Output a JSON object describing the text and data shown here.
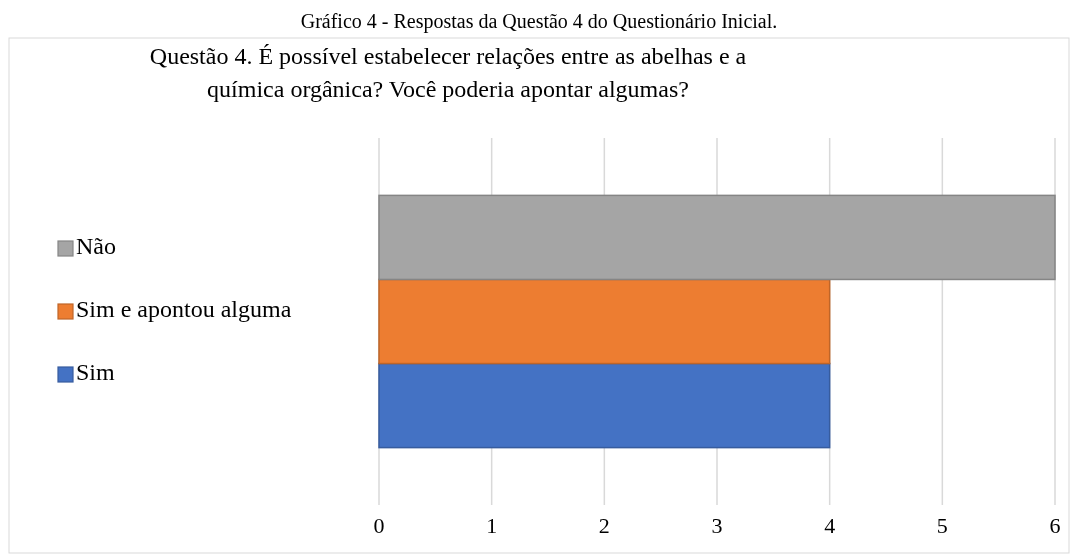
{
  "chart_data": {
    "type": "bar",
    "orientation": "horizontal",
    "title": "Gráfico 4 - Respostas da Questão 4 do Questionário Inicial.",
    "subtitle": "Questão 4. É possível estabelecer relações entre as abelhas e a\nquímica orgânica? Você poderia apontar algumas?",
    "categories": [
      null
    ],
    "series": [
      {
        "name": "Sim",
        "color": "#4472c4",
        "values": [
          4
        ]
      },
      {
        "name": "Sim e apontou alguma",
        "color": "#ed7d31",
        "values": [
          4
        ]
      },
      {
        "name": "Não",
        "color": "#a5a5a5",
        "values": [
          6
        ]
      }
    ],
    "xlim": [
      0,
      6
    ],
    "xticks": [
      0,
      1,
      2,
      3,
      4,
      5,
      6
    ],
    "grid": "x",
    "legend": "left"
  }
}
